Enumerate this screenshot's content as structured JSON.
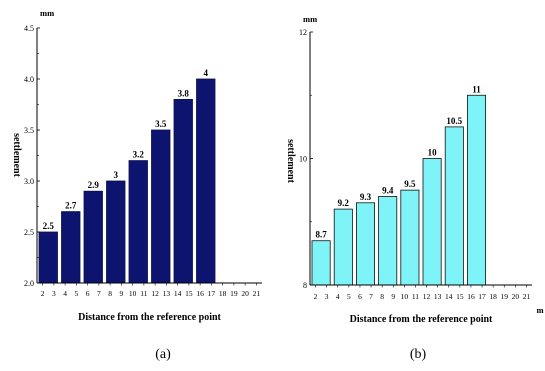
{
  "chart_data": [
    {
      "type": "bar",
      "panel_label": "(a)",
      "ylabel": "settlement",
      "xlabel": "Distance from the reference point",
      "y_unit": "mm",
      "x_unit": "",
      "ylim": [
        2.0,
        4.5
      ],
      "yticks": [
        "2.0",
        "2.5",
        "3.0",
        "3.5",
        "4.0",
        "4.5"
      ],
      "xticks": [
        "2",
        "3",
        "4",
        "5",
        "6",
        "7",
        "8",
        "9",
        "10",
        "11",
        "12",
        "13",
        "14",
        "15",
        "16",
        "17",
        "18",
        "19",
        "20",
        "21"
      ],
      "xrange": [
        1.5,
        21.5
      ],
      "bars": [
        {
          "x": [
            2,
            3
          ],
          "value": 2.5,
          "label": "2.5"
        },
        {
          "x": [
            4,
            5
          ],
          "value": 2.7,
          "label": "2.7"
        },
        {
          "x": [
            6,
            7
          ],
          "value": 2.9,
          "label": "2.9"
        },
        {
          "x": [
            8,
            9
          ],
          "value": 3.0,
          "label": "3"
        },
        {
          "x": [
            10,
            11
          ],
          "value": 3.2,
          "label": "3.2"
        },
        {
          "x": [
            12,
            13
          ],
          "value": 3.5,
          "label": "3.5"
        },
        {
          "x": [
            14,
            15
          ],
          "value": 3.8,
          "label": "3.8"
        },
        {
          "x": [
            16,
            17
          ],
          "value": 4.0,
          "label": "4"
        }
      ],
      "bar_color": "#0d1470",
      "grid": false
    },
    {
      "type": "bar",
      "panel_label": "(b)",
      "ylabel": "settlement",
      "xlabel": "Distance from the reference point",
      "y_unit": "mm",
      "x_unit": "m",
      "ylim": [
        8,
        12
      ],
      "yticks": [
        "8",
        "10",
        "12"
      ],
      "xticks": [
        "2",
        "3",
        "4",
        "5",
        "6",
        "7",
        "8",
        "9",
        "10",
        "11",
        "12",
        "13",
        "14",
        "15",
        "16",
        "17",
        "18",
        "19",
        "20",
        "21"
      ],
      "xrange": [
        1.5,
        21.5
      ],
      "bars": [
        {
          "x": [
            2,
            3
          ],
          "value": 8.7,
          "label": "8.7"
        },
        {
          "x": [
            4,
            5
          ],
          "value": 9.2,
          "label": "9.2"
        },
        {
          "x": [
            6,
            7
          ],
          "value": 9.3,
          "label": "9.3"
        },
        {
          "x": [
            8,
            9
          ],
          "value": 9.4,
          "label": "9.4"
        },
        {
          "x": [
            10,
            11
          ],
          "value": 9.5,
          "label": "9.5"
        },
        {
          "x": [
            12,
            13
          ],
          "value": 10.0,
          "label": "10"
        },
        {
          "x": [
            14,
            15
          ],
          "value": 10.5,
          "label": "10.5"
        },
        {
          "x": [
            16,
            17
          ],
          "value": 11.0,
          "label": "11"
        }
      ],
      "bar_color": "#7ff4f8",
      "grid": false
    }
  ]
}
